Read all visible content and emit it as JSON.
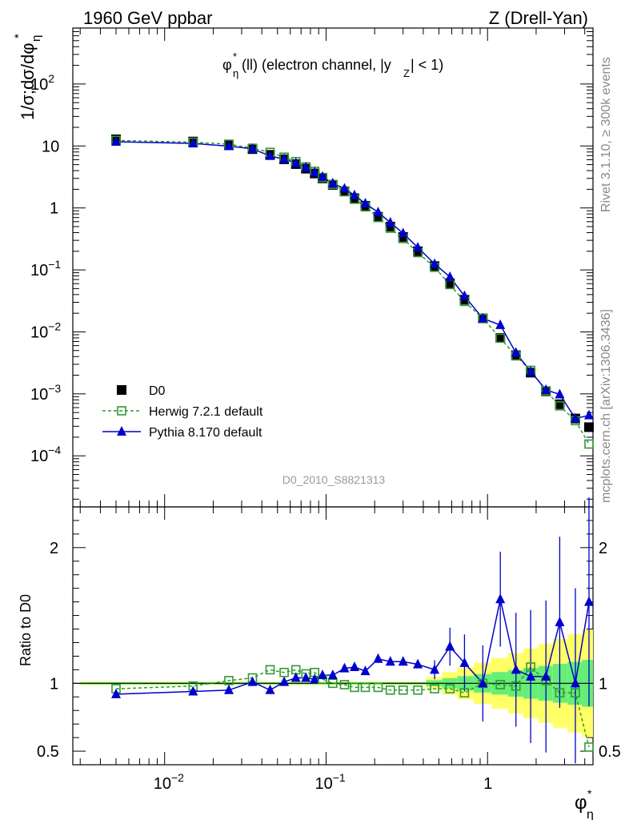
{
  "header": {
    "left": "1960 GeV ppbar",
    "right": "Z (Drell-Yan)"
  },
  "side_labels": {
    "rivet": "Rivet 3.1.10, ≥ 300k events",
    "mcplots": "mcplots.cern.ch [arXiv:1306.3436]"
  },
  "chart_data": {
    "type": "line",
    "title": "φ*η(ll) (electron channel, |yZ| < 1)",
    "analysis_id": "D0_2010_S8821313",
    "xlabel": "φ*η",
    "ylabel": "1/σ;dσ/dφ*η",
    "ratio_ylabel": "Ratio to D0",
    "xscale": "log",
    "yscale": "log",
    "xlim": [
      0.0027,
      4.5
    ],
    "ylim": [
      1.5e-05,
      800
    ],
    "ratio_ylim": [
      0.4,
      2.3
    ],
    "x_tick_labels": [
      "10^-2",
      "10^-1",
      "1"
    ],
    "y_tick_labels": [
      "10^-4",
      "10^-3",
      "10^-2",
      "10^-1",
      "1",
      "10",
      "10^2"
    ],
    "ratio_tick_labels": [
      "0.5",
      "1",
      "2"
    ],
    "legend_position": "lower-left",
    "x": [
      0.005,
      0.015,
      0.025,
      0.035,
      0.045,
      0.055,
      0.065,
      0.075,
      0.085,
      0.095,
      0.11,
      0.13,
      0.15,
      0.175,
      0.21,
      0.25,
      0.3,
      0.37,
      0.47,
      0.585,
      0.72,
      0.935,
      1.2,
      1.5,
      1.85,
      2.3,
      2.8,
      3.5,
      4.25
    ],
    "series": [
      {
        "name": "D0",
        "color": "#000000",
        "marker": "filled-square",
        "values": [
          12.8,
          11.8,
          10.5,
          8.9,
          7.2,
          6.1,
          5.1,
          4.3,
          3.6,
          3.0,
          2.35,
          1.85,
          1.43,
          1.08,
          0.72,
          0.5,
          0.34,
          0.2,
          0.115,
          0.061,
          0.033,
          0.0165,
          0.008,
          0.0042,
          0.0022,
          0.0011,
          0.00068,
          0.0004,
          0.00029
        ]
      },
      {
        "name": "Herwig 7.2.1 default",
        "color": "#339933",
        "marker": "open-square",
        "line": "dashed",
        "values": [
          12.3,
          11.5,
          10.7,
          9.2,
          7.9,
          6.6,
          5.6,
          4.6,
          3.9,
          3.1,
          2.4,
          1.82,
          1.38,
          1.04,
          0.7,
          0.47,
          0.32,
          0.19,
          0.11,
          0.058,
          0.031,
          0.0165,
          0.0079,
          0.0041,
          0.0024,
          0.00112,
          0.00064,
          0.00037,
          0.000155
        ]
      },
      {
        "name": "Pythia 8.170 default",
        "color": "#0000cc",
        "marker": "filled-triangle",
        "line": "solid",
        "values": [
          11.7,
          11.0,
          9.95,
          9.0,
          6.9,
          6.15,
          5.3,
          4.5,
          3.75,
          3.2,
          2.5,
          2.05,
          1.6,
          1.18,
          0.85,
          0.58,
          0.39,
          0.23,
          0.125,
          0.077,
          0.038,
          0.0165,
          0.0129,
          0.0046,
          0.0023,
          0.00116,
          0.00098,
          0.0004,
          0.00045
        ]
      }
    ],
    "ratio": {
      "herwig": [
        0.96,
        0.98,
        1.02,
        1.04,
        1.1,
        1.08,
        1.1,
        1.07,
        1.08,
        1.03,
        1.0,
        0.99,
        0.97,
        0.97,
        0.97,
        0.95,
        0.95,
        0.95,
        0.96,
        0.96,
        0.93,
        1.0,
        0.99,
        0.98,
        1.12,
        1.02,
        0.93,
        0.93,
        0.53
      ],
      "pythia": [
        0.92,
        0.94,
        0.95,
        1.01,
        0.95,
        1.01,
        1.04,
        1.04,
        1.03,
        1.06,
        1.06,
        1.11,
        1.12,
        1.09,
        1.18,
        1.16,
        1.16,
        1.14,
        1.1,
        1.27,
        1.15,
        1.0,
        1.62,
        1.1,
        1.05,
        1.05,
        1.45,
        1.0,
        1.6
      ]
    }
  }
}
